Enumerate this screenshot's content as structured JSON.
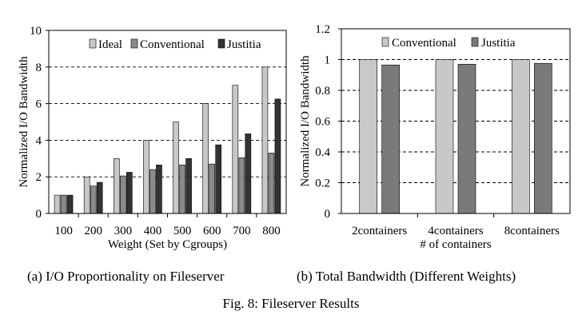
{
  "chart_data": [
    {
      "type": "bar",
      "title": "",
      "xlabel": "Weight (Set by Cgroups)",
      "ylabel": "Normalized I/O Bandwidth",
      "categories": [
        "100",
        "200",
        "300",
        "400",
        "500",
        "600",
        "700",
        "800"
      ],
      "series": [
        {
          "name": "Ideal",
          "values": [
            1,
            2,
            3,
            4,
            5,
            6,
            7,
            8
          ]
        },
        {
          "name": "Conventional",
          "values": [
            1.0,
            1.5,
            2.05,
            2.4,
            2.65,
            2.7,
            3.05,
            3.3
          ]
        },
        {
          "name": "Justitia",
          "values": [
            1.0,
            1.7,
            2.25,
            2.65,
            3.0,
            3.75,
            4.35,
            6.25
          ]
        }
      ],
      "ylim": [
        0,
        10
      ],
      "yticks": [
        "0",
        "2",
        "4",
        "6",
        "8",
        "10"
      ],
      "grid": "dashed horizontal",
      "legend": "top"
    },
    {
      "type": "bar",
      "title": "",
      "xlabel": "# of containers",
      "ylabel": "Normalized I/O Bandwidth",
      "categories": [
        "2containers",
        "4containers",
        "8containers"
      ],
      "series": [
        {
          "name": "Conventional",
          "values": [
            1.0,
            1.0,
            1.0
          ]
        },
        {
          "name": "Justitia",
          "values": [
            0.965,
            0.97,
            0.975
          ]
        }
      ],
      "ylim": [
        0,
        1.2
      ],
      "yticks": [
        "0",
        "0.2",
        "0.4",
        "0.6",
        "0.8",
        "1",
        "1.2"
      ],
      "grid": "dashed horizontal",
      "legend": "top"
    }
  ],
  "captions": {
    "a": "(a) I/O Proportionality on Fileserver",
    "b": "(b) Total Bandwidth (Different Weights)",
    "figure": "Fig. 8: Fileserver Results"
  },
  "colors": {
    "Ideal": "#c8c8c8",
    "Conventional": "#8a8a8a",
    "Justitia": "#333333",
    "Conventional_b": "#c8c8c8",
    "Justitia_b": "#7a7a7a"
  }
}
